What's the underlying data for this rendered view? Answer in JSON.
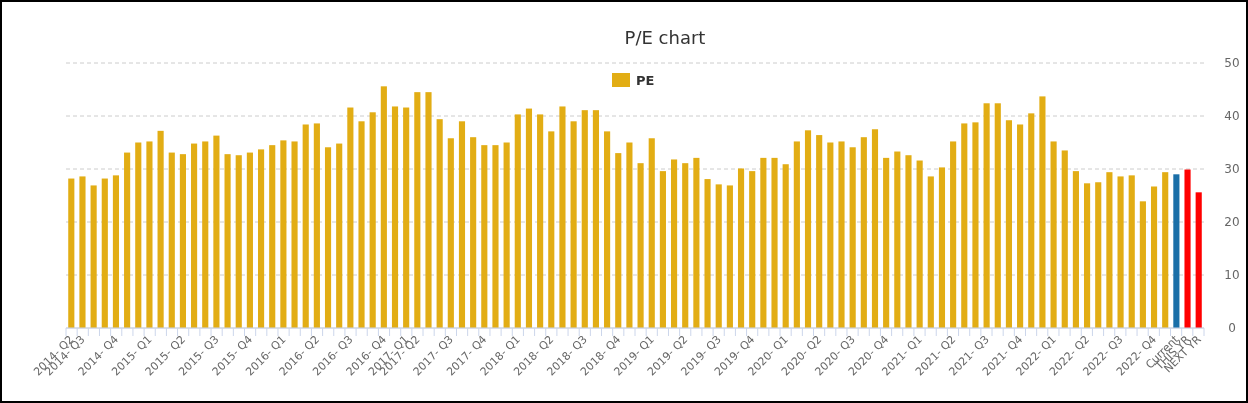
{
  "chart_data": {
    "type": "bar",
    "title": "P/E chart",
    "categories": [
      "2014- Q2",
      "2014- Q3",
      null,
      null,
      "2014- Q4",
      null,
      null,
      "2015- Q1",
      null,
      null,
      "2015- Q2",
      null,
      null,
      "2015- Q3",
      null,
      null,
      "2015- Q4",
      null,
      null,
      "2016- Q1",
      null,
      null,
      "2016- Q2",
      null,
      null,
      "2016- Q3",
      null,
      null,
      "2016- Q4",
      null,
      "2017- Q1",
      "2017- Q2",
      null,
      null,
      "2017- Q3",
      null,
      null,
      "2017- Q4",
      null,
      null,
      "2018- Q1",
      null,
      null,
      "2018- Q2",
      null,
      null,
      "2018- Q3",
      null,
      null,
      "2018- Q4",
      null,
      null,
      "2019- Q1",
      null,
      null,
      "2019- Q2",
      null,
      null,
      "2019- Q3",
      null,
      null,
      "2019- Q4",
      null,
      null,
      "2020- Q1",
      null,
      null,
      "2020- Q2",
      null,
      null,
      "2020- Q3",
      null,
      null,
      "2020- Q4",
      null,
      null,
      "2021- Q1",
      null,
      null,
      "2021- Q2",
      null,
      null,
      "2021- Q3",
      null,
      null,
      "2021- Q4",
      null,
      null,
      "2022- Q1",
      null,
      null,
      "2022- Q2",
      null,
      null,
      "2022- Q3",
      null,
      null,
      "2022- Q4",
      null,
      "Current",
      "THIS YR",
      "NEXT YR"
    ],
    "series": [
      {
        "name": "PE",
        "color": "#e2ad14",
        "colors": [
          "#e2ad14",
          "#e2ad14",
          "#e2ad14",
          "#e2ad14",
          "#e2ad14",
          "#e2ad14",
          "#e2ad14",
          "#e2ad14",
          "#e2ad14",
          "#e2ad14",
          "#e2ad14",
          "#e2ad14",
          "#e2ad14",
          "#e2ad14",
          "#e2ad14",
          "#e2ad14",
          "#e2ad14",
          "#e2ad14",
          "#e2ad14",
          "#e2ad14",
          "#e2ad14",
          "#e2ad14",
          "#e2ad14",
          "#e2ad14",
          "#e2ad14",
          "#e2ad14",
          "#e2ad14",
          "#e2ad14",
          "#e2ad14",
          "#e2ad14",
          "#e2ad14",
          "#e2ad14",
          "#e2ad14",
          "#e2ad14",
          "#e2ad14",
          "#e2ad14",
          "#e2ad14",
          "#e2ad14",
          "#e2ad14",
          "#e2ad14",
          "#e2ad14",
          "#e2ad14",
          "#e2ad14",
          "#e2ad14",
          "#e2ad14",
          "#e2ad14",
          "#e2ad14",
          "#e2ad14",
          "#e2ad14",
          "#e2ad14",
          "#e2ad14",
          "#e2ad14",
          "#e2ad14",
          "#e2ad14",
          "#e2ad14",
          "#e2ad14",
          "#e2ad14",
          "#e2ad14",
          "#e2ad14",
          "#e2ad14",
          "#e2ad14",
          "#e2ad14",
          "#e2ad14",
          "#e2ad14",
          "#e2ad14",
          "#e2ad14",
          "#e2ad14",
          "#e2ad14",
          "#e2ad14",
          "#e2ad14",
          "#e2ad14",
          "#e2ad14",
          "#e2ad14",
          "#e2ad14",
          "#e2ad14",
          "#e2ad14",
          "#e2ad14",
          "#e2ad14",
          "#e2ad14",
          "#e2ad14",
          "#e2ad14",
          "#e2ad14",
          "#e2ad14",
          "#e2ad14",
          "#e2ad14",
          "#e2ad14",
          "#e2ad14",
          "#e2ad14",
          "#e2ad14",
          "#e2ad14",
          "#e2ad14",
          "#e2ad14",
          "#e2ad14",
          "#e2ad14",
          "#e2ad14",
          "#e2ad14",
          "#e2ad14",
          "#e2ad14",
          "#e2ad14",
          "#1a6fa8",
          "#ff0000",
          "#ff0000"
        ],
        "values": [
          28.2,
          28.6,
          26.9,
          28.2,
          28.8,
          33.1,
          35.0,
          35.2,
          37.2,
          33.1,
          32.8,
          34.8,
          35.2,
          36.3,
          32.8,
          32.6,
          33.1,
          33.7,
          34.5,
          35.4,
          35.2,
          38.4,
          38.6,
          34.1,
          34.8,
          41.6,
          39.0,
          40.7,
          45.6,
          41.8,
          41.6,
          44.5,
          44.5,
          39.4,
          35.8,
          39.0,
          36.0,
          34.5,
          34.5,
          35.0,
          40.3,
          41.4,
          40.3,
          37.1,
          41.8,
          39.0,
          41.1,
          41.1,
          37.1,
          33.0,
          35.0,
          31.1,
          35.8,
          29.6,
          31.8,
          31.1,
          32.1,
          28.1,
          27.1,
          26.9,
          30.1,
          29.6,
          32.1,
          32.1,
          30.9,
          35.2,
          37.3,
          36.4,
          35.0,
          35.2,
          34.1,
          36.0,
          37.5,
          32.1,
          33.3,
          32.6,
          31.6,
          28.6,
          30.3,
          35.2,
          38.6,
          38.8,
          42.4,
          42.4,
          39.2,
          38.4,
          40.5,
          43.7,
          35.2,
          33.5,
          29.6,
          27.3,
          27.5,
          29.4,
          28.6,
          28.8,
          23.9,
          26.7,
          29.4,
          29.0,
          29.9,
          25.6
        ]
      }
    ],
    "ylim": [
      0,
      50
    ],
    "yticks": [
      0,
      10,
      20,
      30,
      40,
      50
    ],
    "grid": true,
    "legend": "top"
  }
}
